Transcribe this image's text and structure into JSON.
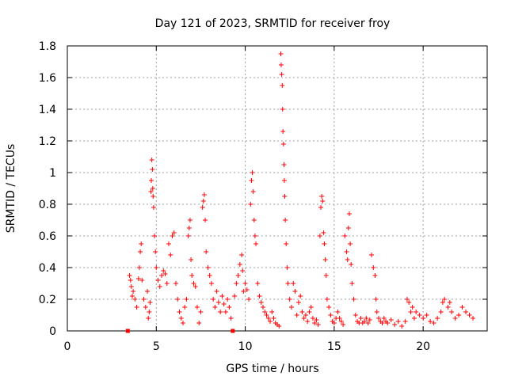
{
  "chart_data": {
    "type": "scatter",
    "title": "Day 121 of 2023, SRMTID for receiver froy",
    "xlabel": "GPS time / hours",
    "ylabel": "SRMTID / TECUs",
    "xlim": [
      0,
      23.6
    ],
    "ylim": [
      0,
      1.8
    ],
    "xticks": [
      0,
      5,
      10,
      15,
      20
    ],
    "yticks": [
      0,
      0.2,
      0.4,
      0.6,
      0.8,
      1,
      1.2,
      1.4,
      1.6,
      1.8
    ],
    "xtick_labels": [
      "0",
      "5",
      "10",
      "15",
      "20"
    ],
    "ytick_labels": [
      "0",
      "0.2",
      "0.4",
      "0.6",
      "0.8",
      "1",
      "1.2",
      "1.4",
      "1.6",
      "1.8"
    ],
    "grid": true,
    "marker": "plus",
    "color": "#ff0000",
    "series": [
      {
        "name": "SRMTID",
        "points": [
          [
            3.4,
            0.0
          ],
          [
            9.3,
            0.0
          ],
          [
            3.5,
            0.35
          ],
          [
            3.55,
            0.32
          ],
          [
            3.6,
            0.28
          ],
          [
            3.65,
            0.22
          ],
          [
            3.7,
            0.25
          ],
          [
            3.8,
            0.2
          ],
          [
            3.9,
            0.15
          ],
          [
            4.0,
            0.33
          ],
          [
            4.05,
            0.4
          ],
          [
            4.1,
            0.5
          ],
          [
            4.15,
            0.55
          ],
          [
            4.2,
            0.32
          ],
          [
            4.3,
            0.2
          ],
          [
            4.4,
            0.15
          ],
          [
            4.5,
            0.25
          ],
          [
            4.55,
            0.08
          ],
          [
            4.6,
            0.12
          ],
          [
            4.65,
            0.18
          ],
          [
            4.7,
            0.88
          ],
          [
            4.72,
            0.95
          ],
          [
            4.75,
            1.08
          ],
          [
            4.78,
            1.02
          ],
          [
            4.8,
            0.9
          ],
          [
            4.82,
            0.85
          ],
          [
            4.85,
            0.78
          ],
          [
            4.9,
            0.6
          ],
          [
            4.95,
            0.5
          ],
          [
            5.0,
            0.4
          ],
          [
            5.1,
            0.32
          ],
          [
            5.2,
            0.28
          ],
          [
            5.3,
            0.35
          ],
          [
            5.4,
            0.38
          ],
          [
            5.5,
            0.36
          ],
          [
            5.6,
            0.3
          ],
          [
            5.7,
            0.55
          ],
          [
            5.8,
            0.48
          ],
          [
            5.9,
            0.6
          ],
          [
            6.0,
            0.62
          ],
          [
            6.1,
            0.3
          ],
          [
            6.2,
            0.2
          ],
          [
            6.3,
            0.12
          ],
          [
            6.4,
            0.08
          ],
          [
            6.5,
            0.05
          ],
          [
            6.6,
            0.15
          ],
          [
            6.7,
            0.2
          ],
          [
            6.8,
            0.6
          ],
          [
            6.85,
            0.65
          ],
          [
            6.9,
            0.7
          ],
          [
            6.95,
            0.45
          ],
          [
            7.0,
            0.35
          ],
          [
            7.1,
            0.3
          ],
          [
            7.2,
            0.28
          ],
          [
            7.3,
            0.15
          ],
          [
            7.4,
            0.05
          ],
          [
            7.5,
            0.12
          ],
          [
            7.6,
            0.78
          ],
          [
            7.65,
            0.82
          ],
          [
            7.7,
            0.86
          ],
          [
            7.75,
            0.7
          ],
          [
            7.8,
            0.5
          ],
          [
            7.9,
            0.4
          ],
          [
            8.0,
            0.35
          ],
          [
            8.1,
            0.3
          ],
          [
            8.2,
            0.2
          ],
          [
            8.3,
            0.15
          ],
          [
            8.4,
            0.25
          ],
          [
            8.5,
            0.18
          ],
          [
            8.6,
            0.12
          ],
          [
            8.7,
            0.22
          ],
          [
            8.8,
            0.17
          ],
          [
            8.9,
            0.12
          ],
          [
            9.0,
            0.2
          ],
          [
            9.1,
            0.15
          ],
          [
            9.2,
            0.08
          ],
          [
            9.4,
            0.22
          ],
          [
            9.5,
            0.3
          ],
          [
            9.6,
            0.35
          ],
          [
            9.7,
            0.42
          ],
          [
            9.8,
            0.48
          ],
          [
            9.85,
            0.38
          ],
          [
            9.9,
            0.25
          ],
          [
            10.0,
            0.3
          ],
          [
            10.1,
            0.26
          ],
          [
            10.2,
            0.2
          ],
          [
            10.3,
            0.8
          ],
          [
            10.35,
            0.95
          ],
          [
            10.4,
            1.0
          ],
          [
            10.45,
            0.88
          ],
          [
            10.5,
            0.7
          ],
          [
            10.55,
            0.6
          ],
          [
            10.6,
            0.55
          ],
          [
            10.7,
            0.3
          ],
          [
            10.8,
            0.22
          ],
          [
            10.9,
            0.18
          ],
          [
            11.0,
            0.15
          ],
          [
            11.1,
            0.12
          ],
          [
            11.2,
            0.1
          ],
          [
            11.3,
            0.08
          ],
          [
            11.4,
            0.06
          ],
          [
            11.5,
            0.12
          ],
          [
            11.6,
            0.08
          ],
          [
            11.7,
            0.05
          ],
          [
            11.8,
            0.04
          ],
          [
            11.9,
            0.03
          ],
          [
            12.0,
            1.75
          ],
          [
            12.02,
            1.68
          ],
          [
            12.05,
            1.62
          ],
          [
            12.08,
            1.55
          ],
          [
            12.1,
            1.4
          ],
          [
            12.12,
            1.26
          ],
          [
            12.15,
            1.18
          ],
          [
            12.18,
            1.05
          ],
          [
            12.2,
            0.95
          ],
          [
            12.22,
            0.85
          ],
          [
            12.25,
            0.7
          ],
          [
            12.3,
            0.55
          ],
          [
            12.35,
            0.4
          ],
          [
            12.4,
            0.3
          ],
          [
            12.5,
            0.2
          ],
          [
            12.6,
            0.15
          ],
          [
            12.7,
            0.3
          ],
          [
            12.8,
            0.25
          ],
          [
            12.9,
            0.1
          ],
          [
            13.0,
            0.18
          ],
          [
            13.1,
            0.22
          ],
          [
            13.2,
            0.12
          ],
          [
            13.3,
            0.08
          ],
          [
            13.4,
            0.1
          ],
          [
            13.5,
            0.06
          ],
          [
            13.6,
            0.12
          ],
          [
            13.7,
            0.15
          ],
          [
            13.8,
            0.08
          ],
          [
            13.9,
            0.05
          ],
          [
            14.0,
            0.07
          ],
          [
            14.1,
            0.04
          ],
          [
            14.2,
            0.6
          ],
          [
            14.25,
            0.78
          ],
          [
            14.3,
            0.85
          ],
          [
            14.35,
            0.82
          ],
          [
            14.4,
            0.62
          ],
          [
            14.45,
            0.55
          ],
          [
            14.5,
            0.45
          ],
          [
            14.55,
            0.35
          ],
          [
            14.6,
            0.2
          ],
          [
            14.7,
            0.15
          ],
          [
            14.8,
            0.1
          ],
          [
            14.9,
            0.06
          ],
          [
            15.0,
            0.05
          ],
          [
            15.1,
            0.08
          ],
          [
            15.2,
            0.12
          ],
          [
            15.3,
            0.08
          ],
          [
            15.4,
            0.06
          ],
          [
            15.5,
            0.04
          ],
          [
            15.6,
            0.6
          ],
          [
            15.7,
            0.5
          ],
          [
            15.75,
            0.45
          ],
          [
            15.8,
            0.65
          ],
          [
            15.85,
            0.74
          ],
          [
            15.9,
            0.55
          ],
          [
            15.95,
            0.42
          ],
          [
            16.0,
            0.3
          ],
          [
            16.1,
            0.2
          ],
          [
            16.2,
            0.1
          ],
          [
            16.3,
            0.06
          ],
          [
            16.4,
            0.05
          ],
          [
            16.5,
            0.08
          ],
          [
            16.6,
            0.05
          ],
          [
            16.7,
            0.06
          ],
          [
            16.8,
            0.08
          ],
          [
            16.9,
            0.05
          ],
          [
            17.0,
            0.07
          ],
          [
            17.1,
            0.48
          ],
          [
            17.2,
            0.4
          ],
          [
            17.3,
            0.35
          ],
          [
            17.35,
            0.2
          ],
          [
            17.4,
            0.12
          ],
          [
            17.5,
            0.08
          ],
          [
            17.6,
            0.06
          ],
          [
            17.7,
            0.05
          ],
          [
            17.8,
            0.08
          ],
          [
            17.9,
            0.06
          ],
          [
            18.0,
            0.05
          ],
          [
            18.2,
            0.07
          ],
          [
            18.4,
            0.04
          ],
          [
            18.6,
            0.06
          ],
          [
            18.8,
            0.03
          ],
          [
            19.0,
            0.06
          ],
          [
            19.1,
            0.2
          ],
          [
            19.2,
            0.18
          ],
          [
            19.3,
            0.12
          ],
          [
            19.4,
            0.15
          ],
          [
            19.5,
            0.08
          ],
          [
            19.6,
            0.12
          ],
          [
            19.8,
            0.1
          ],
          [
            20.0,
            0.08
          ],
          [
            20.2,
            0.1
          ],
          [
            20.4,
            0.06
          ],
          [
            20.6,
            0.05
          ],
          [
            20.8,
            0.08
          ],
          [
            21.0,
            0.12
          ],
          [
            21.1,
            0.18
          ],
          [
            21.2,
            0.2
          ],
          [
            21.4,
            0.15
          ],
          [
            21.5,
            0.18
          ],
          [
            21.6,
            0.12
          ],
          [
            21.8,
            0.08
          ],
          [
            22.0,
            0.1
          ],
          [
            22.2,
            0.15
          ],
          [
            22.4,
            0.12
          ],
          [
            22.6,
            0.1
          ],
          [
            22.8,
            0.08
          ]
        ]
      }
    ]
  }
}
